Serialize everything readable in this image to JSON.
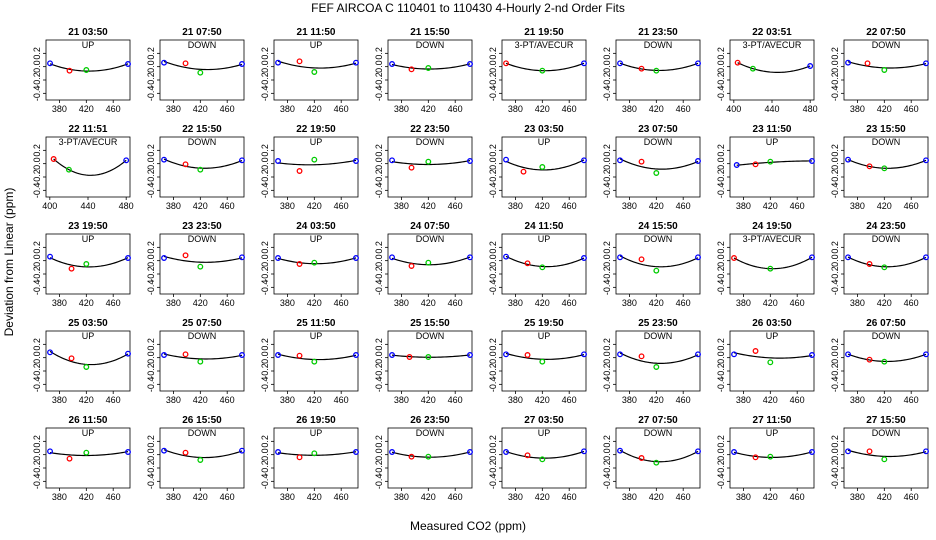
{
  "chart_data": {
    "type": "scatter",
    "title": "FEF   AIRCOA C   110401 to 110430   4-Hourly 2-nd Order Fits",
    "xlabel": "Measured CO2 (ppm)",
    "ylabel": "Deviation from Linear (ppm)",
    "ylim": [
      -0.5,
      0.4
    ],
    "yticks": [
      0.2,
      0.0,
      -0.2,
      -0.4
    ],
    "colors": {
      "std1": "#0000ff",
      "std2": "#ff0000",
      "std3": "#00cc00",
      "std4": "#0000ff",
      "fit": "#000000"
    },
    "panels": [
      {
        "title": "21 03:50",
        "subtitle": "UP",
        "x": [
          366,
          395,
          420,
          482
        ],
        "y": [
          0.05,
          -0.06,
          -0.05,
          0.04
        ],
        "xlim": [
          360,
          485
        ],
        "xticks": [
          380,
          420,
          460
        ]
      },
      {
        "title": "21 07:50",
        "subtitle": "DOWN",
        "x": [
          366,
          398,
          420,
          482
        ],
        "y": [
          0.06,
          0.05,
          -0.09,
          0.04
        ],
        "xlim": [
          360,
          485
        ],
        "xticks": [
          380,
          420,
          460
        ]
      },
      {
        "title": "21 11:50",
        "subtitle": "UP",
        "x": [
          366,
          398,
          420,
          482
        ],
        "y": [
          0.06,
          0.08,
          -0.08,
          0.06
        ],
        "xlim": [
          360,
          485
        ],
        "xticks": [
          380,
          420,
          460
        ]
      },
      {
        "title": "21 15:50",
        "subtitle": "DOWN",
        "x": [
          366,
          395,
          420,
          482
        ],
        "y": [
          0.04,
          -0.04,
          -0.02,
          0.04
        ],
        "xlim": [
          360,
          485
        ],
        "xticks": [
          380,
          420,
          460
        ]
      },
      {
        "title": "21 19:50",
        "subtitle": "3-PT/AVECUR",
        "x": [
          366,
          420,
          482
        ],
        "y": [
          0.05,
          -0.06,
          0.05
        ],
        "xlim": [
          360,
          485
        ],
        "xticks": [
          380,
          420,
          460
        ]
      },
      {
        "title": "21 23:50",
        "subtitle": "DOWN",
        "x": [
          366,
          398,
          420,
          482
        ],
        "y": [
          0.05,
          -0.03,
          -0.06,
          0.05
        ],
        "xlim": [
          360,
          485
        ],
        "xticks": [
          380,
          420,
          460
        ]
      },
      {
        "title": "22 03:51",
        "subtitle": "3-PT/AVECUR",
        "x": [
          404,
          420,
          480
        ],
        "y": [
          0.06,
          -0.03,
          0.01
        ],
        "xlim": [
          396,
          484
        ],
        "xticks": [
          400,
          440,
          480
        ]
      },
      {
        "title": "22 07:50",
        "subtitle": "DOWN",
        "x": [
          366,
          395,
          420,
          482
        ],
        "y": [
          0.06,
          0.05,
          -0.05,
          0.05
        ],
        "xlim": [
          360,
          485
        ],
        "xticks": [
          380,
          420,
          460
        ]
      },
      {
        "title": "22 11:51",
        "subtitle": "3-PT/AVECUR",
        "x": [
          404,
          420,
          480
        ],
        "y": [
          0.07,
          -0.09,
          0.05
        ],
        "xlim": [
          396,
          484
        ],
        "xticks": [
          400,
          440,
          480
        ]
      },
      {
        "title": "22 15:50",
        "subtitle": "DOWN",
        "x": [
          366,
          398,
          420,
          482
        ],
        "y": [
          0.06,
          -0.01,
          -0.09,
          0.05
        ],
        "xlim": [
          360,
          485
        ],
        "xticks": [
          380,
          420,
          460
        ]
      },
      {
        "title": "22 19:50",
        "subtitle": "UP",
        "x": [
          366,
          398,
          420,
          482
        ],
        "y": [
          0.04,
          -0.11,
          0.06,
          0.04
        ],
        "xlim": [
          360,
          485
        ],
        "xticks": [
          380,
          420,
          460
        ]
      },
      {
        "title": "22 23:50",
        "subtitle": "DOWN",
        "x": [
          366,
          395,
          420,
          482
        ],
        "y": [
          0.05,
          -0.06,
          0.03,
          0.04
        ],
        "xlim": [
          360,
          485
        ],
        "xticks": [
          380,
          420,
          460
        ]
      },
      {
        "title": "23 03:50",
        "subtitle": "UP",
        "x": [
          366,
          392,
          420,
          482
        ],
        "y": [
          0.06,
          -0.12,
          -0.05,
          0.05
        ],
        "xlim": [
          360,
          485
        ],
        "xticks": [
          380,
          420,
          460
        ]
      },
      {
        "title": "23 07:50",
        "subtitle": "DOWN",
        "x": [
          366,
          398,
          420,
          482
        ],
        "y": [
          0.05,
          0.03,
          -0.14,
          0.04
        ],
        "xlim": [
          360,
          485
        ],
        "xticks": [
          380,
          420,
          460
        ]
      },
      {
        "title": "23 11:50",
        "subtitle": "UP",
        "x": [
          370,
          398,
          420,
          482
        ],
        "y": [
          -0.02,
          -0.01,
          0.03,
          0.04
        ],
        "xlim": [
          360,
          485
        ],
        "xticks": [
          380,
          420,
          460
        ]
      },
      {
        "title": "23 15:50",
        "subtitle": "DOWN",
        "x": [
          366,
          398,
          420,
          482
        ],
        "y": [
          0.06,
          -0.04,
          -0.07,
          0.05
        ],
        "xlim": [
          360,
          485
        ],
        "xticks": [
          380,
          420,
          460
        ]
      },
      {
        "title": "23 19:50",
        "subtitle": "UP",
        "x": [
          366,
          398,
          420,
          482
        ],
        "y": [
          0.06,
          -0.12,
          -0.05,
          0.04
        ],
        "xlim": [
          360,
          485
        ],
        "xticks": [
          380,
          420,
          460
        ]
      },
      {
        "title": "23 23:50",
        "subtitle": "DOWN",
        "x": [
          366,
          398,
          420,
          482
        ],
        "y": [
          0.04,
          0.08,
          -0.09,
          0.05
        ],
        "xlim": [
          360,
          485
        ],
        "xticks": [
          380,
          420,
          460
        ]
      },
      {
        "title": "24 03:50",
        "subtitle": "UP",
        "x": [
          366,
          398,
          420,
          482
        ],
        "y": [
          0.04,
          -0.05,
          -0.03,
          0.04
        ],
        "xlim": [
          360,
          485
        ],
        "xticks": [
          380,
          420,
          460
        ]
      },
      {
        "title": "24 07:50",
        "subtitle": "DOWN",
        "x": [
          366,
          395,
          420,
          482
        ],
        "y": [
          0.05,
          -0.08,
          -0.03,
          0.05
        ],
        "xlim": [
          360,
          485
        ],
        "xticks": [
          380,
          420,
          460
        ]
      },
      {
        "title": "24 11:50",
        "subtitle": "UP",
        "x": [
          366,
          398,
          420,
          482
        ],
        "y": [
          0.06,
          -0.04,
          -0.1,
          0.04
        ],
        "xlim": [
          360,
          485
        ],
        "xticks": [
          380,
          420,
          460
        ]
      },
      {
        "title": "24 15:50",
        "subtitle": "DOWN",
        "x": [
          366,
          398,
          420,
          482
        ],
        "y": [
          0.05,
          0.02,
          -0.15,
          0.05
        ],
        "xlim": [
          360,
          485
        ],
        "xticks": [
          380,
          420,
          460
        ]
      },
      {
        "title": "24 19:50",
        "subtitle": "3-PT/AVECUR",
        "x": [
          366,
          420,
          482
        ],
        "y": [
          0.04,
          -0.12,
          0.05
        ],
        "xlim": [
          360,
          485
        ],
        "xticks": [
          380,
          420,
          460
        ]
      },
      {
        "title": "24 23:50",
        "subtitle": "DOWN",
        "x": [
          366,
          398,
          420,
          482
        ],
        "y": [
          0.05,
          -0.05,
          -0.1,
          0.05
        ],
        "xlim": [
          360,
          485
        ],
        "xticks": [
          380,
          420,
          460
        ]
      },
      {
        "title": "25 03:50",
        "subtitle": "UP",
        "x": [
          366,
          398,
          420,
          482
        ],
        "y": [
          0.08,
          -0.01,
          -0.14,
          0.06
        ],
        "xlim": [
          360,
          485
        ],
        "xticks": [
          380,
          420,
          460
        ]
      },
      {
        "title": "25 07:50",
        "subtitle": "DOWN",
        "x": [
          366,
          398,
          420,
          482
        ],
        "y": [
          0.04,
          0.05,
          -0.06,
          0.04
        ],
        "xlim": [
          360,
          485
        ],
        "xticks": [
          380,
          420,
          460
        ]
      },
      {
        "title": "25 11:50",
        "subtitle": "UP",
        "x": [
          366,
          398,
          420,
          482
        ],
        "y": [
          0.04,
          0.03,
          -0.06,
          0.04
        ],
        "xlim": [
          360,
          485
        ],
        "xticks": [
          380,
          420,
          460
        ]
      },
      {
        "title": "25 15:50",
        "subtitle": "DOWN",
        "x": [
          366,
          392,
          420,
          482
        ],
        "y": [
          0.04,
          0.01,
          0.01,
          0.04
        ],
        "xlim": [
          360,
          485
        ],
        "xticks": [
          380,
          420,
          460
        ]
      },
      {
        "title": "25 19:50",
        "subtitle": "UP",
        "x": [
          366,
          398,
          420,
          482
        ],
        "y": [
          0.05,
          0.04,
          -0.06,
          0.05
        ],
        "xlim": [
          360,
          485
        ],
        "xticks": [
          380,
          420,
          460
        ]
      },
      {
        "title": "25 23:50",
        "subtitle": "DOWN",
        "x": [
          366,
          398,
          420,
          482
        ],
        "y": [
          0.05,
          0.02,
          -0.14,
          0.05
        ],
        "xlim": [
          360,
          485
        ],
        "xticks": [
          380,
          420,
          460
        ]
      },
      {
        "title": "26 03:50",
        "subtitle": "UP",
        "x": [
          366,
          398,
          420,
          482
        ],
        "y": [
          0.05,
          0.1,
          -0.07,
          0.04
        ],
        "xlim": [
          360,
          485
        ],
        "xticks": [
          380,
          420,
          460
        ]
      },
      {
        "title": "26 07:50",
        "subtitle": "DOWN",
        "x": [
          366,
          398,
          420,
          482
        ],
        "y": [
          0.05,
          -0.03,
          -0.06,
          0.05
        ],
        "xlim": [
          360,
          485
        ],
        "xticks": [
          380,
          420,
          460
        ]
      },
      {
        "title": "26 11:50",
        "subtitle": "UP",
        "x": [
          366,
          395,
          420,
          482
        ],
        "y": [
          0.05,
          -0.06,
          0.03,
          0.04
        ],
        "xlim": [
          360,
          485
        ],
        "xticks": [
          380,
          420,
          460
        ]
      },
      {
        "title": "26 15:50",
        "subtitle": "DOWN",
        "x": [
          366,
          398,
          420,
          482
        ],
        "y": [
          0.06,
          0.03,
          -0.08,
          0.06
        ],
        "xlim": [
          360,
          485
        ],
        "xticks": [
          380,
          420,
          460
        ]
      },
      {
        "title": "26 19:50",
        "subtitle": "UP",
        "x": [
          366,
          398,
          420,
          482
        ],
        "y": [
          0.04,
          -0.04,
          0.02,
          0.04
        ],
        "xlim": [
          360,
          485
        ],
        "xticks": [
          380,
          420,
          460
        ]
      },
      {
        "title": "26 23:50",
        "subtitle": "DOWN",
        "x": [
          366,
          395,
          420,
          482
        ],
        "y": [
          0.04,
          -0.03,
          -0.03,
          0.04
        ],
        "xlim": [
          360,
          485
        ],
        "xticks": [
          380,
          420,
          460
        ]
      },
      {
        "title": "27 03:50",
        "subtitle": "UP",
        "x": [
          366,
          398,
          420,
          482
        ],
        "y": [
          0.04,
          -0.01,
          -0.07,
          0.05
        ],
        "xlim": [
          360,
          485
        ],
        "xticks": [
          380,
          420,
          460
        ]
      },
      {
        "title": "27 07:50",
        "subtitle": "DOWN",
        "x": [
          366,
          398,
          420,
          482
        ],
        "y": [
          0.06,
          -0.05,
          -0.12,
          0.05
        ],
        "xlim": [
          360,
          485
        ],
        "xticks": [
          380,
          420,
          460
        ]
      },
      {
        "title": "27 11:50",
        "subtitle": "UP",
        "x": [
          366,
          398,
          420,
          482
        ],
        "y": [
          0.04,
          -0.04,
          -0.03,
          0.04
        ],
        "xlim": [
          360,
          485
        ],
        "xticks": [
          380,
          420,
          460
        ]
      },
      {
        "title": "27 15:50",
        "subtitle": "DOWN",
        "x": [
          366,
          398,
          420,
          482
        ],
        "y": [
          0.05,
          0.05,
          -0.07,
          0.05
        ],
        "xlim": [
          360,
          485
        ],
        "xticks": [
          380,
          420,
          460
        ]
      }
    ]
  }
}
